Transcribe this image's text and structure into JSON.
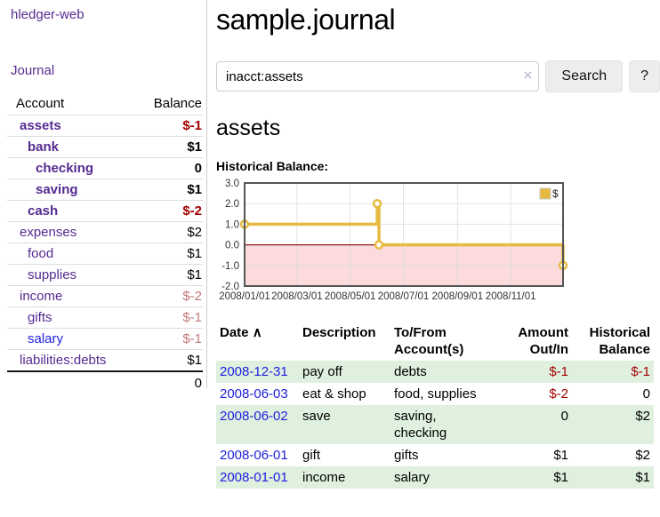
{
  "app": {
    "title": "hledger-web"
  },
  "sidebar": {
    "journal_link": "Journal",
    "accounts_table": {
      "headers": {
        "account": "Account",
        "balance": "Balance"
      },
      "rows": [
        {
          "name": "assets",
          "level": 1,
          "bold": true,
          "balance": "$-1"
        },
        {
          "name": "bank",
          "level": 2,
          "bold": true,
          "balance": "$1"
        },
        {
          "name": "checking",
          "level": 3,
          "bold": true,
          "balance": "0"
        },
        {
          "name": "saving",
          "level": 3,
          "bold": true,
          "balance": "$1"
        },
        {
          "name": "cash",
          "level": 2,
          "bold": true,
          "balance": "$-2"
        },
        {
          "name": "expenses",
          "level": 1,
          "bold": false,
          "balance": "$2"
        },
        {
          "name": "food",
          "level": 2,
          "bold": false,
          "balance": "$1"
        },
        {
          "name": "supplies",
          "level": 2,
          "bold": false,
          "balance": "$1"
        },
        {
          "name": "income",
          "level": 1,
          "bold": false,
          "balance": "$-2"
        },
        {
          "name": "gifts",
          "level": 2,
          "bold": false,
          "balance": "$-1"
        },
        {
          "name": "salary",
          "level": 2,
          "bold": false,
          "balance": "$-1",
          "link_color": "blue"
        },
        {
          "name": "liabilities:debts",
          "level": 1,
          "bold": false,
          "balance": "$1"
        }
      ],
      "total": "0"
    }
  },
  "main": {
    "title": "sample.journal",
    "search": {
      "value": "inacct:assets",
      "clear_icon": "×",
      "button_label": "Search",
      "help_label": "?"
    },
    "account_heading": "assets",
    "chart_heading": "Historical Balance:"
  },
  "chart_data": {
    "type": "line",
    "step": true,
    "title": "Historical Balance:",
    "legend": [
      "$"
    ],
    "legend_position": "top-right",
    "series": [
      {
        "name": "$",
        "points": [
          [
            "2008-01-01",
            1
          ],
          [
            "2008-06-01",
            2
          ],
          [
            "2008-06-03",
            0
          ],
          [
            "2008-12-31",
            -1
          ]
        ]
      }
    ],
    "xlim": [
      "2008-01-01",
      "2008-12-31"
    ],
    "ylim": [
      -2.0,
      3.0
    ],
    "x_ticks": [
      {
        "date": "2008-01-01",
        "label": "2008/01/01"
      },
      {
        "date": "2008-03-01",
        "label": "2008/03/01"
      },
      {
        "date": "2008-05-01",
        "label": "2008/05/01"
      },
      {
        "date": "2008-07-01",
        "label": "2008/07/01"
      },
      {
        "date": "2008-09-01",
        "label": "2008/09/01"
      },
      {
        "date": "2008-11-01",
        "label": "2008/11/01"
      }
    ],
    "y_ticks": [
      "3.0",
      "2.0",
      "1.0",
      "0.0",
      "-1.0",
      "-2.0"
    ],
    "grid": true,
    "colors": {
      "line": "#e6ba42",
      "marker_fill": "#ffffff",
      "negative_fill": "#fbdbdb",
      "zero_line": "#8f1a1a",
      "grid": "#d9d9d9",
      "border": "#555555"
    }
  },
  "register": {
    "headers": {
      "date": "Date",
      "sort_icon": "∧",
      "description": "Description",
      "accounts": "To/From Account(s)",
      "amount": "Amount Out/In",
      "balance": "Historical Balance"
    },
    "rows": [
      {
        "date": "2008-12-31",
        "description": "pay off",
        "accounts": "debts",
        "amount": "$-1",
        "balance": "$-1",
        "shaded": true
      },
      {
        "date": "2008-06-03",
        "description": "eat & shop",
        "accounts": "food, supplies",
        "amount": "$-2",
        "balance": "0",
        "shaded": false
      },
      {
        "date": "2008-06-02",
        "description": "save",
        "accounts": "saving, checking",
        "amount": "0",
        "balance": "$2",
        "shaded": true
      },
      {
        "date": "2008-06-01",
        "description": "gift",
        "accounts": "gifts",
        "amount": "$1",
        "balance": "$2",
        "shaded": false
      },
      {
        "date": "2008-01-01",
        "description": "income",
        "accounts": "salary",
        "amount": "$1",
        "balance": "$1",
        "shaded": true
      }
    ]
  },
  "colors": {
    "link_purple": "#552a90",
    "link_blue": "#2020e0",
    "negative_strong": "#a40000",
    "negative_soft": "#c27878",
    "row_shade_green": "#dff0df",
    "button_bg": "#ededed"
  }
}
